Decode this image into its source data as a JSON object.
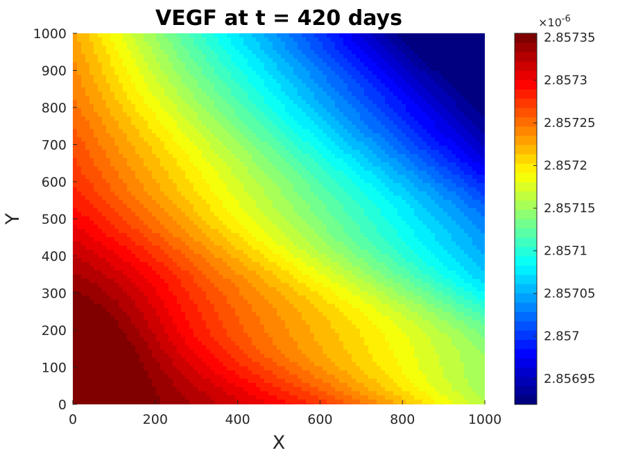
{
  "chart_data": {
    "type": "heatmap",
    "subtype": "filled-contour",
    "title": "VEGF at t = 420 days",
    "xlabel": "X",
    "ylabel": "Y",
    "xlim": [
      0,
      1000
    ],
    "ylim": [
      0,
      1000
    ],
    "xticks": [
      "0",
      "200",
      "400",
      "600",
      "800",
      "1000"
    ],
    "yticks": [
      "0",
      "100",
      "200",
      "300",
      "400",
      "500",
      "600",
      "700",
      "800",
      "900",
      "1000"
    ],
    "colormap": "jet",
    "colorbar": {
      "multiplier_prefix": "×10",
      "multiplier_exp": "-6",
      "range": [
        2.85692,
        2.857355
      ],
      "ticks": [
        2.85695,
        2.857,
        2.85705,
        2.8571,
        2.85715,
        2.8572,
        2.85725,
        2.8573,
        2.85735
      ],
      "tick_labels": [
        "2.85695",
        "2.857",
        "2.85705",
        "2.8571",
        "2.85715",
        "2.8572",
        "2.85725",
        "2.8573",
        "2.85735"
      ],
      "levels": 40
    },
    "field_features": {
      "maximum": {
        "x": 60,
        "y": 210,
        "value": 2.85736
      },
      "minimum": {
        "x": 1000,
        "y": 1000,
        "value": 2.85692
      },
      "gradient": "decreases from lower-left toward upper-right"
    },
    "grid": false
  }
}
